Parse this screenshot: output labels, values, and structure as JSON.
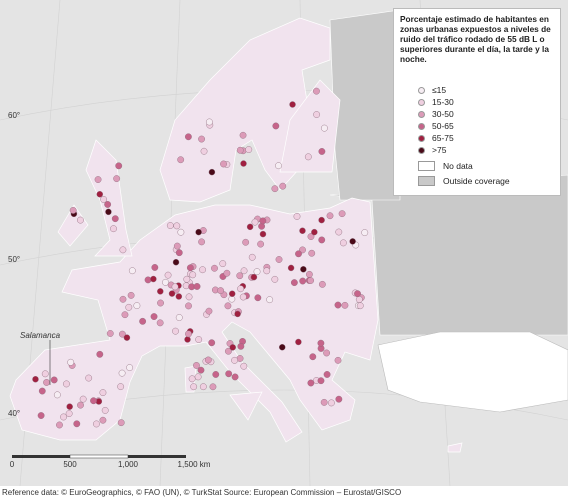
{
  "legend": {
    "title": "Porcentaje estimado de habitantes en zonas urbanas expuestos a niveles de ruido del tráfico rodado de 55 dB L o superiores durante el día, la tarde y la noche.",
    "classes": [
      {
        "label": "≤15",
        "color": "#f6edf3"
      },
      {
        "label": "15-30",
        "color": "#efcfe0"
      },
      {
        "label": "30-50",
        "color": "#dc9bb8"
      },
      {
        "label": "50-65",
        "color": "#c6648a"
      },
      {
        "label": "65-75",
        "color": "#a02040"
      },
      {
        "label": ">75",
        "color": "#4a0a18"
      }
    ],
    "no_data": "No data",
    "outside": "Outside coverage"
  },
  "place_label": "Salamanca",
  "graticule": [
    "60°",
    "50°",
    "40°"
  ],
  "scale_bar": [
    "0",
    "500",
    "1,000",
    "1,500 km"
  ],
  "footer": "Reference data: © EuroGeographics, © FAO (UN), © TurkStat Source: European Commission – Eurostat/GISCO"
}
